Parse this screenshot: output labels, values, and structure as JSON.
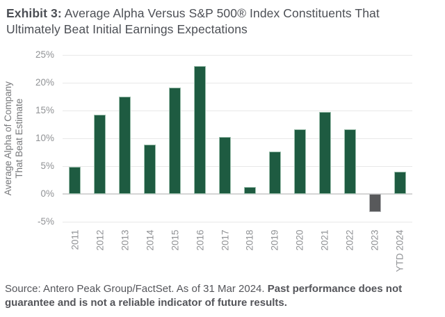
{
  "header": {
    "label": "Exhibit 3:",
    "title_rest": " Average Alpha Versus S&P 500® Index Constituents That Ultimately Beat Initial Earnings Expectations"
  },
  "chart_data": {
    "type": "bar",
    "title": "Average Alpha Versus S&P 500® Index Constituents That Ultimately Beat Initial Earnings Expectations",
    "categories": [
      "2011",
      "2012",
      "2013",
      "2014",
      "2015",
      "2016",
      "2017",
      "2018",
      "2019",
      "2020",
      "2021",
      "2022",
      "2023",
      "YTD 2024"
    ],
    "values": [
      4.9,
      14.3,
      17.5,
      8.9,
      19.1,
      23.0,
      10.3,
      1.3,
      7.6,
      11.6,
      14.8,
      11.6,
      -3.3,
      4.0
    ],
    "xlabel": "",
    "ylabel": "Average Alpha of Company That Beat Estimate",
    "ylabel_lines": [
      "Average Alpha of Company",
      "That Beat Estimate"
    ],
    "y_ticks": [
      "25%",
      "20%",
      "15%",
      "10%",
      "5%",
      "0%",
      "-5%"
    ],
    "ylim": [
      -5,
      25
    ],
    "grid": true,
    "legend": "none",
    "colors": {
      "bar_positive": "#1e5b41",
      "bar_negative": "#58595b",
      "bar_border_positive": "#9dc0ae",
      "bar_border_negative": "#b4b5b7",
      "gridline": "#e8e8e8",
      "zero_line": "#d5d5d5",
      "tick_text": "#909295",
      "axis_title_text": "#77787b"
    }
  },
  "footer": {
    "source": "Source: Antero Peak Group/FactSet. As of 31 Mar 2024. ",
    "disclaimer": "Past performance does not guarantee and is not a reliable indicator of future results."
  }
}
